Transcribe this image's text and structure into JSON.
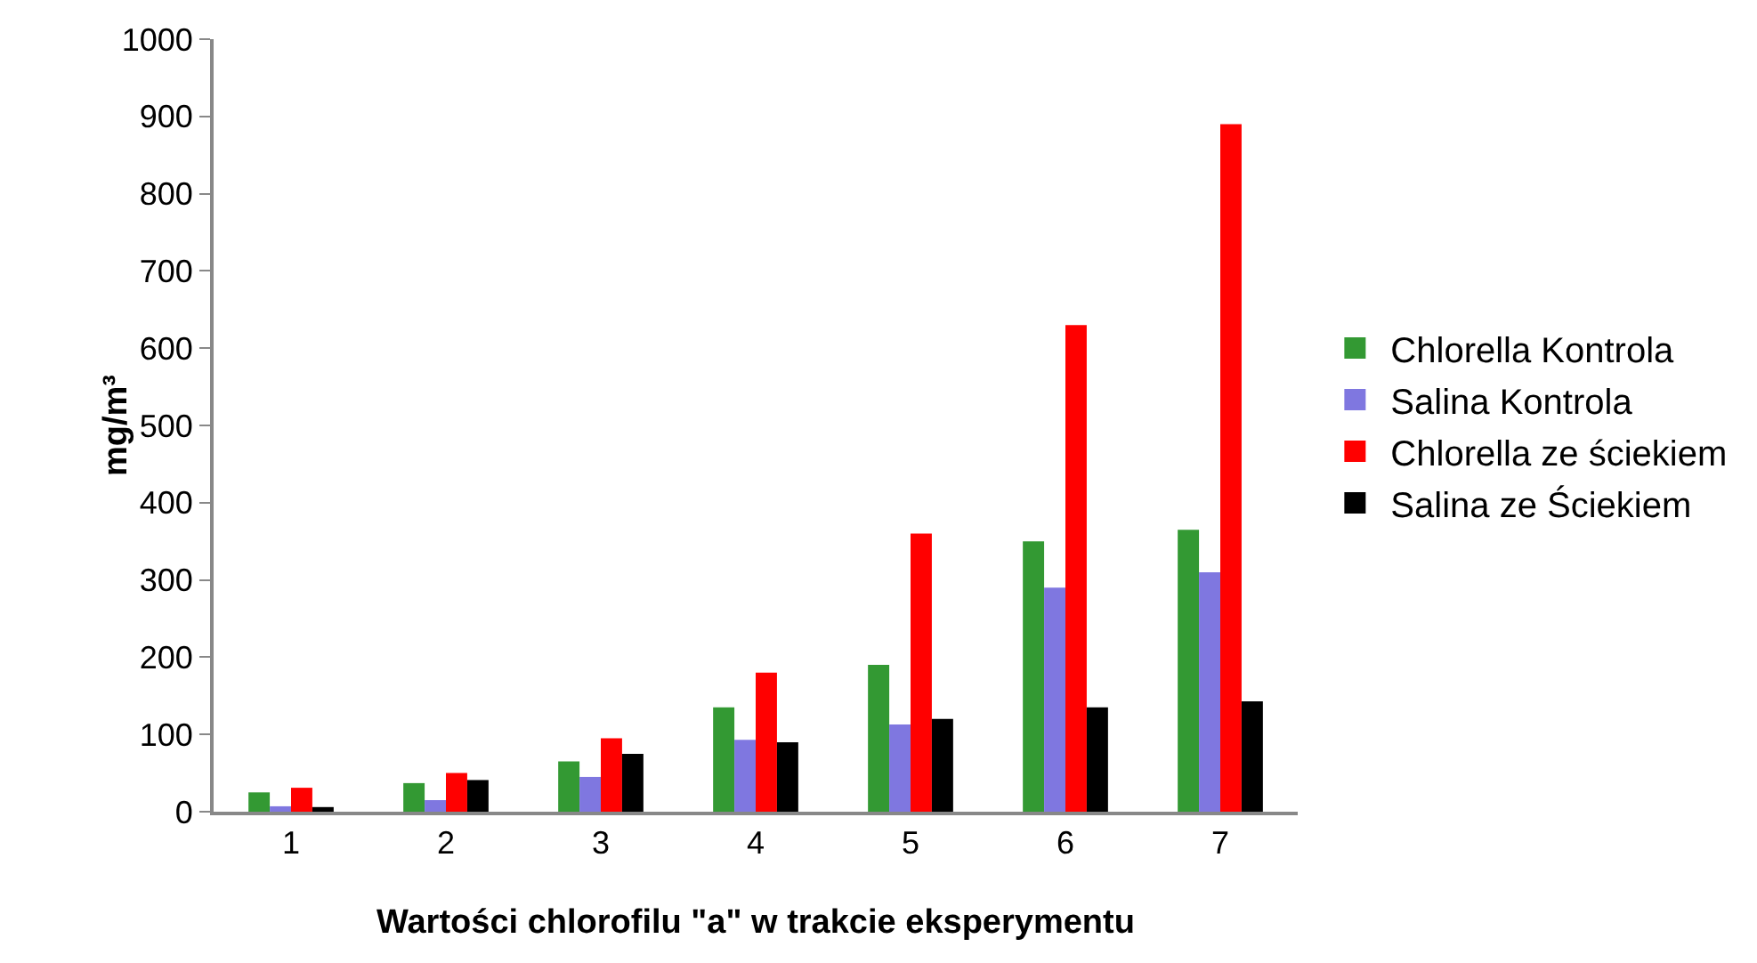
{
  "chart_data": {
    "type": "bar",
    "xlabel": "Wartości chlorofilu \"a\" w trakcie eksperymentu",
    "ylabel": "mg/m³",
    "categories": [
      "1",
      "2",
      "3",
      "4",
      "5",
      "6",
      "7"
    ],
    "series": [
      {
        "name": "Chlorella Kontrola",
        "color": "#339933",
        "values": [
          25,
          37,
          65,
          135,
          190,
          350,
          365
        ]
      },
      {
        "name": "Salina Kontrola",
        "color": "#7f77e0",
        "values": [
          7,
          15,
          45,
          93,
          113,
          290,
          310
        ]
      },
      {
        "name": "Chlorella ze ściekiem",
        "color": "#ff0000",
        "values": [
          31,
          50,
          95,
          180,
          360,
          630,
          890
        ]
      },
      {
        "name": "Salina ze Ściekiem",
        "color": "#000000",
        "values": [
          6,
          41,
          75,
          90,
          120,
          135,
          143
        ]
      }
    ],
    "ylim": [
      0,
      1000
    ],
    "yticks": [
      0,
      100,
      200,
      300,
      400,
      500,
      600,
      700,
      800,
      900,
      1000
    ],
    "grid": false,
    "legend": "right"
  }
}
